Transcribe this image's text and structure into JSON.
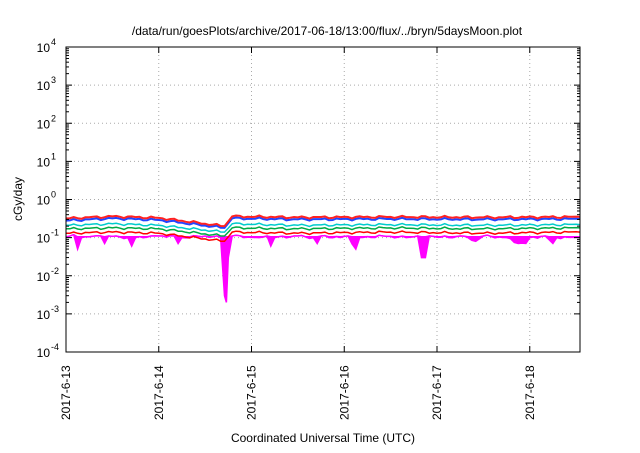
{
  "chart_data": {
    "type": "line",
    "title": "/data/run/goesPlots/archive/2017-06-18/13:00/flux/../bryn/5daysMoon.plot",
    "xlabel": "Coordinated Universal Time (UTC)",
    "ylabel": "cGy/day",
    "yscale": "log",
    "ylim": [
      0.0001,
      10000
    ],
    "xlim": [
      "2017-06-13T00:00",
      "2017-06-18T13:00"
    ],
    "grid": true,
    "x_ticks": [
      "2017-6-13",
      "2017-6-14",
      "2017-6-15",
      "2017-6-16",
      "2017-6-17",
      "2017-6-18"
    ],
    "y_ticks": [
      {
        "base": "10",
        "exp": "4"
      },
      {
        "base": "10",
        "exp": "3"
      },
      {
        "base": "10",
        "exp": "2"
      },
      {
        "base": "10",
        "exp": "1"
      },
      {
        "base": "10",
        "exp": "0"
      },
      {
        "base": "10",
        "exp": "-1"
      },
      {
        "base": "10",
        "exp": "-2"
      },
      {
        "base": "10",
        "exp": "-3"
      },
      {
        "base": "10",
        "exp": "-4"
      }
    ],
    "series": [
      {
        "color": "#ff00ff",
        "fill_down": true,
        "points": [
          [
            "2017-06-13T00:00",
            0.1
          ],
          [
            "2017-06-13T02:00",
            0.12
          ],
          [
            "2017-06-13T03:00",
            0.05
          ],
          [
            "2017-06-13T04:00",
            0.1
          ],
          [
            "2017-06-13T09:00",
            0.11
          ],
          [
            "2017-06-13T10:00",
            0.07
          ],
          [
            "2017-06-13T11:00",
            0.11
          ],
          [
            "2017-06-13T16:00",
            0.1
          ],
          [
            "2017-06-13T17:00",
            0.06
          ],
          [
            "2017-06-13T18:00",
            0.1
          ],
          [
            "2017-06-13T22:00",
            0.11
          ],
          [
            "2017-06-14T04:00",
            0.11
          ],
          [
            "2017-06-14T05:00",
            0.07
          ],
          [
            "2017-06-14T06:00",
            0.1
          ],
          [
            "2017-06-14T12:00",
            0.11
          ],
          [
            "2017-06-14T16:00",
            0.1
          ],
          [
            "2017-06-14T17:00",
            0.003
          ],
          [
            "2017-06-14T17:30",
            0.002
          ],
          [
            "2017-06-14T18:00",
            0.03
          ],
          [
            "2017-06-14T19:00",
            0.11
          ],
          [
            "2017-06-15T02:00",
            0.1
          ],
          [
            "2017-06-15T04:00",
            0.11
          ],
          [
            "2017-06-15T05:00",
            0.06
          ],
          [
            "2017-06-15T06:00",
            0.1
          ],
          [
            "2017-06-15T12:00",
            0.11
          ],
          [
            "2017-06-15T16:00",
            0.1
          ],
          [
            "2017-06-15T17:00",
            0.07
          ],
          [
            "2017-06-15T18:00",
            0.11
          ],
          [
            "2017-06-15T23:00",
            0.1
          ],
          [
            "2017-06-16T01:00",
            0.11
          ],
          [
            "2017-06-16T03:00",
            0.05
          ],
          [
            "2017-06-16T04:00",
            0.1
          ],
          [
            "2017-06-16T10:00",
            0.11
          ],
          [
            "2017-06-16T16:00",
            0.1
          ],
          [
            "2017-06-16T19:00",
            0.11
          ],
          [
            "2017-06-16T20:00",
            0.03
          ],
          [
            "2017-06-16T21:00",
            0.03
          ],
          [
            "2017-06-16T22:00",
            0.11
          ],
          [
            "2017-06-17T03:00",
            0.1
          ],
          [
            "2017-06-17T06:00",
            0.11
          ],
          [
            "2017-06-17T08:00",
            0.1
          ],
          [
            "2017-06-17T10:00",
            0.08
          ],
          [
            "2017-06-17T12:00",
            0.11
          ],
          [
            "2017-06-17T18:00",
            0.1
          ],
          [
            "2017-06-17T21:00",
            0.07
          ],
          [
            "2017-06-17T23:00",
            0.07
          ],
          [
            "2017-06-18T00:00",
            0.1
          ],
          [
            "2017-06-18T04:00",
            0.11
          ],
          [
            "2017-06-18T06:00",
            0.07
          ],
          [
            "2017-06-18T07:00",
            0.1
          ],
          [
            "2017-06-18T13:00",
            0.1
          ]
        ]
      },
      {
        "color": "#ff0000",
        "offset": 0.125,
        "points": [
          [
            "2017-06-13T00:00",
            0.13
          ],
          [
            "2017-06-13T12:00",
            0.14
          ],
          [
            "2017-06-14T00:00",
            0.13
          ],
          [
            "2017-06-14T17:00",
            0.08
          ],
          [
            "2017-06-14T19:00",
            0.14
          ],
          [
            "2017-06-15T12:00",
            0.13
          ],
          [
            "2017-06-16T12:00",
            0.14
          ],
          [
            "2017-06-17T12:00",
            0.13
          ],
          [
            "2017-06-18T13:00",
            0.14
          ]
        ]
      },
      {
        "color": "#00aa44",
        "offset": 0.165,
        "points": [
          [
            "2017-06-13T00:00",
            0.17
          ],
          [
            "2017-06-13T12:00",
            0.18
          ],
          [
            "2017-06-14T00:00",
            0.17
          ],
          [
            "2017-06-14T17:00",
            0.11
          ],
          [
            "2017-06-14T19:00",
            0.18
          ],
          [
            "2017-06-15T12:00",
            0.17
          ],
          [
            "2017-06-16T12:00",
            0.18
          ],
          [
            "2017-06-17T12:00",
            0.17
          ],
          [
            "2017-06-18T13:00",
            0.18
          ]
        ]
      },
      {
        "color": "#00cccc",
        "offset": 0.21,
        "points": [
          [
            "2017-06-13T00:00",
            0.21
          ],
          [
            "2017-06-13T12:00",
            0.23
          ],
          [
            "2017-06-14T00:00",
            0.21
          ],
          [
            "2017-06-14T17:00",
            0.14
          ],
          [
            "2017-06-14T19:00",
            0.23
          ],
          [
            "2017-06-15T12:00",
            0.21
          ],
          [
            "2017-06-16T12:00",
            0.22
          ],
          [
            "2017-06-17T12:00",
            0.21
          ],
          [
            "2017-06-18T13:00",
            0.22
          ]
        ]
      },
      {
        "color": "#2244ff",
        "offset": 0.285,
        "points": [
          [
            "2017-06-13T00:00",
            0.28
          ],
          [
            "2017-06-13T12:00",
            0.32
          ],
          [
            "2017-06-14T00:00",
            0.29
          ],
          [
            "2017-06-14T17:00",
            0.18
          ],
          [
            "2017-06-14T19:00",
            0.32
          ],
          [
            "2017-06-15T12:00",
            0.3
          ],
          [
            "2017-06-16T12:00",
            0.31
          ],
          [
            "2017-06-17T12:00",
            0.3
          ],
          [
            "2017-06-18T13:00",
            0.31
          ]
        ]
      },
      {
        "color": "#ff2222",
        "offset": 0.32,
        "points": [
          [
            "2017-06-13T00:00",
            0.32
          ],
          [
            "2017-06-13T12:00",
            0.36
          ],
          [
            "2017-06-14T00:00",
            0.33
          ],
          [
            "2017-06-14T17:00",
            0.2
          ],
          [
            "2017-06-14T19:00",
            0.36
          ],
          [
            "2017-06-15T12:00",
            0.34
          ],
          [
            "2017-06-16T12:00",
            0.35
          ],
          [
            "2017-06-17T12:00",
            0.34
          ],
          [
            "2017-06-18T13:00",
            0.35
          ]
        ]
      }
    ]
  }
}
